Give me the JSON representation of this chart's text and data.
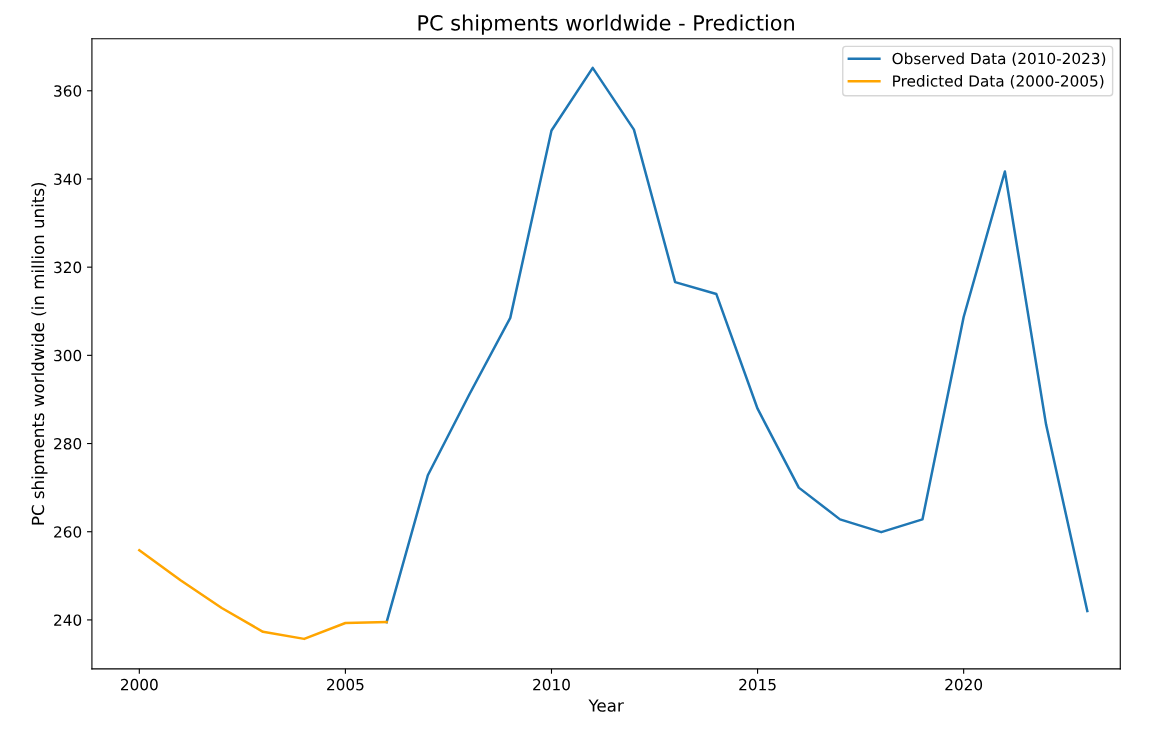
{
  "chart_data": {
    "type": "line",
    "title": "PC shipments worldwide - Prediction",
    "xlabel": "Year",
    "ylabel": "PC shipments worldwide (in million units)",
    "series": [
      {
        "name": "Observed Data (2010-2023)",
        "color": "#1f77b4",
        "x": [
          2006,
          2007,
          2008,
          2009,
          2010,
          2011,
          2012,
          2013,
          2014,
          2015,
          2016,
          2017,
          2018,
          2019,
          2020,
          2021,
          2022,
          2023
        ],
        "values": [
          239.5,
          272.8,
          291,
          308.5,
          351,
          365.2,
          351.2,
          316.6,
          313.9,
          287.9,
          270,
          262.8,
          259.9,
          262.8,
          308.7,
          341.7,
          284.3,
          242
        ]
      },
      {
        "name": "Predicted Data (2000-2005)",
        "color": "#ffa500",
        "x": [
          2000,
          2001,
          2002,
          2003,
          2004,
          2005,
          2006
        ],
        "values": [
          255.8,
          249,
          242.7,
          237.3,
          235.7,
          239.3,
          239.5
        ]
      }
    ],
    "xlim": [
      1998.85,
      2023.8
    ],
    "xticks": [
      2000,
      2005,
      2010,
      2015,
      2020
    ],
    "ylim": [
      228.9,
      371.8
    ],
    "yticks": [
      240,
      260,
      280,
      300,
      320,
      340,
      360
    ],
    "legend": "top right",
    "grid": false,
    "marker": "none",
    "line_style": "solid"
  }
}
